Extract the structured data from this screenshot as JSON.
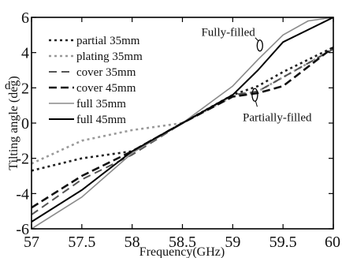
{
  "chart_data": {
    "type": "line",
    "title": "",
    "xlabel": "Frequency(GHz)",
    "ylabel": "Tilting angle (deg)",
    "xlim": [
      57,
      60
    ],
    "ylim": [
      -6,
      6
    ],
    "xticks": [
      "57",
      "57.5",
      "58",
      "58.5",
      "59",
      "59.5",
      "60"
    ],
    "yticks": [
      "-6",
      "-4",
      "-2",
      "0",
      "2",
      "4",
      "6"
    ],
    "grid": false,
    "legend_position": "top-left",
    "series": [
      {
        "name": "partial 35mm",
        "color": "#222222",
        "dash": "3,4",
        "width": 2.6,
        "x": [
          57,
          57.5,
          58,
          58.5,
          59,
          59.25,
          59.5,
          60
        ],
        "y": [
          -2.7,
          -2.0,
          -1.6,
          0,
          1.6,
          2.1,
          2.9,
          4.3
        ]
      },
      {
        "name": "plating 35mm",
        "color": "#9a9a9a",
        "dash": "3,4",
        "width": 2.6,
        "x": [
          57,
          57.5,
          58,
          58.5,
          59,
          59.25,
          59.5,
          60
        ],
        "y": [
          -2.3,
          -1.0,
          -0.4,
          0,
          1.5,
          1.8,
          2.6,
          4.2
        ]
      },
      {
        "name": "cover 35mm",
        "color": "#555555",
        "dash": "10,6",
        "width": 2,
        "x": [
          57,
          57.5,
          58,
          58.5,
          59,
          59.25,
          59.5,
          60
        ],
        "y": [
          -5.2,
          -3.2,
          -1.8,
          0,
          1.6,
          1.8,
          2.6,
          4.2
        ]
      },
      {
        "name": "cover 45mm",
        "color": "#111111",
        "dash": "10,5",
        "width": 2.6,
        "x": [
          57,
          57.5,
          58,
          58.5,
          59,
          59.25,
          59.5,
          60
        ],
        "y": [
          -4.8,
          -3.0,
          -1.6,
          0,
          1.5,
          1.7,
          2.1,
          4.3
        ]
      },
      {
        "name": "full 35mm",
        "color": "#8a8a8a",
        "dash": "",
        "width": 1.6,
        "x": [
          57,
          57.5,
          58,
          58.5,
          59,
          59.25,
          59.5,
          59.75,
          60
        ],
        "y": [
          -6.0,
          -4.2,
          -1.7,
          0,
          2.1,
          3.6,
          5.0,
          5.8,
          6.0
        ]
      },
      {
        "name": "full 45mm",
        "color": "#000000",
        "dash": "",
        "width": 2,
        "x": [
          57,
          57.5,
          58,
          58.5,
          59,
          59.25,
          59.5,
          60
        ],
        "y": [
          -5.6,
          -3.8,
          -1.6,
          0,
          1.6,
          3.0,
          4.6,
          6.0
        ]
      }
    ],
    "annotations": [
      {
        "text": "Fully-filled",
        "marker_x": 59.27,
        "marker_y": 4.4,
        "anchor": "right-aligned-above"
      },
      {
        "text": "Partially-filled",
        "marker_x": 59.22,
        "marker_y": 1.6,
        "anchor": "below-right"
      }
    ],
    "clipped_text": "d"
  }
}
